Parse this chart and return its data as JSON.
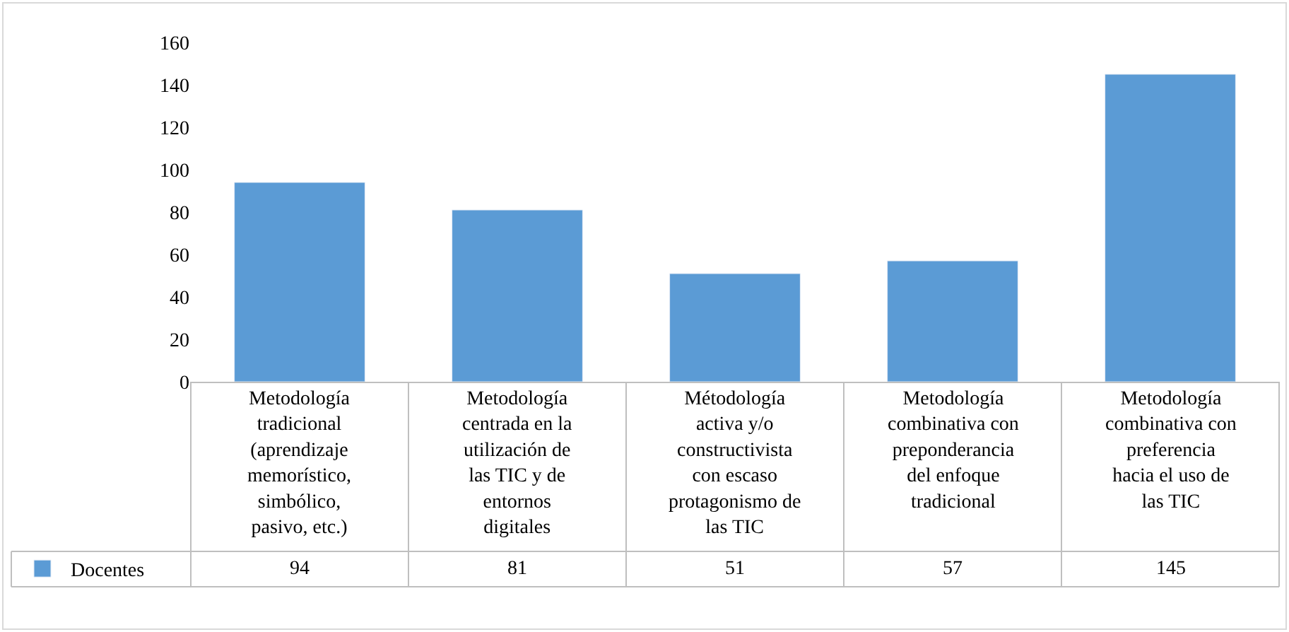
{
  "chart_data": {
    "type": "bar",
    "categories": [
      "Metodología tradicional (aprendizaje memorístico, simbólico, pasivo, etc.)",
      "Metodología centrada en la utilización de las TIC y de entornos digitales",
      "Métodología activa y/o constructivista con escaso protagonismo de las TIC",
      "Metodología combinativa con preponderancia del enfoque tradicional",
      "Metodología combinativa con preferencia hacia el uso de las TIC"
    ],
    "series": [
      {
        "name": "Docentes",
        "color": "#5b9bd5",
        "values": [
          94,
          81,
          51,
          57,
          145
        ]
      }
    ],
    "ylim": [
      0,
      160
    ],
    "yticks": [
      0,
      20,
      40,
      60,
      80,
      100,
      120,
      140,
      160
    ],
    "data_labels": true,
    "legend": "bottom"
  }
}
